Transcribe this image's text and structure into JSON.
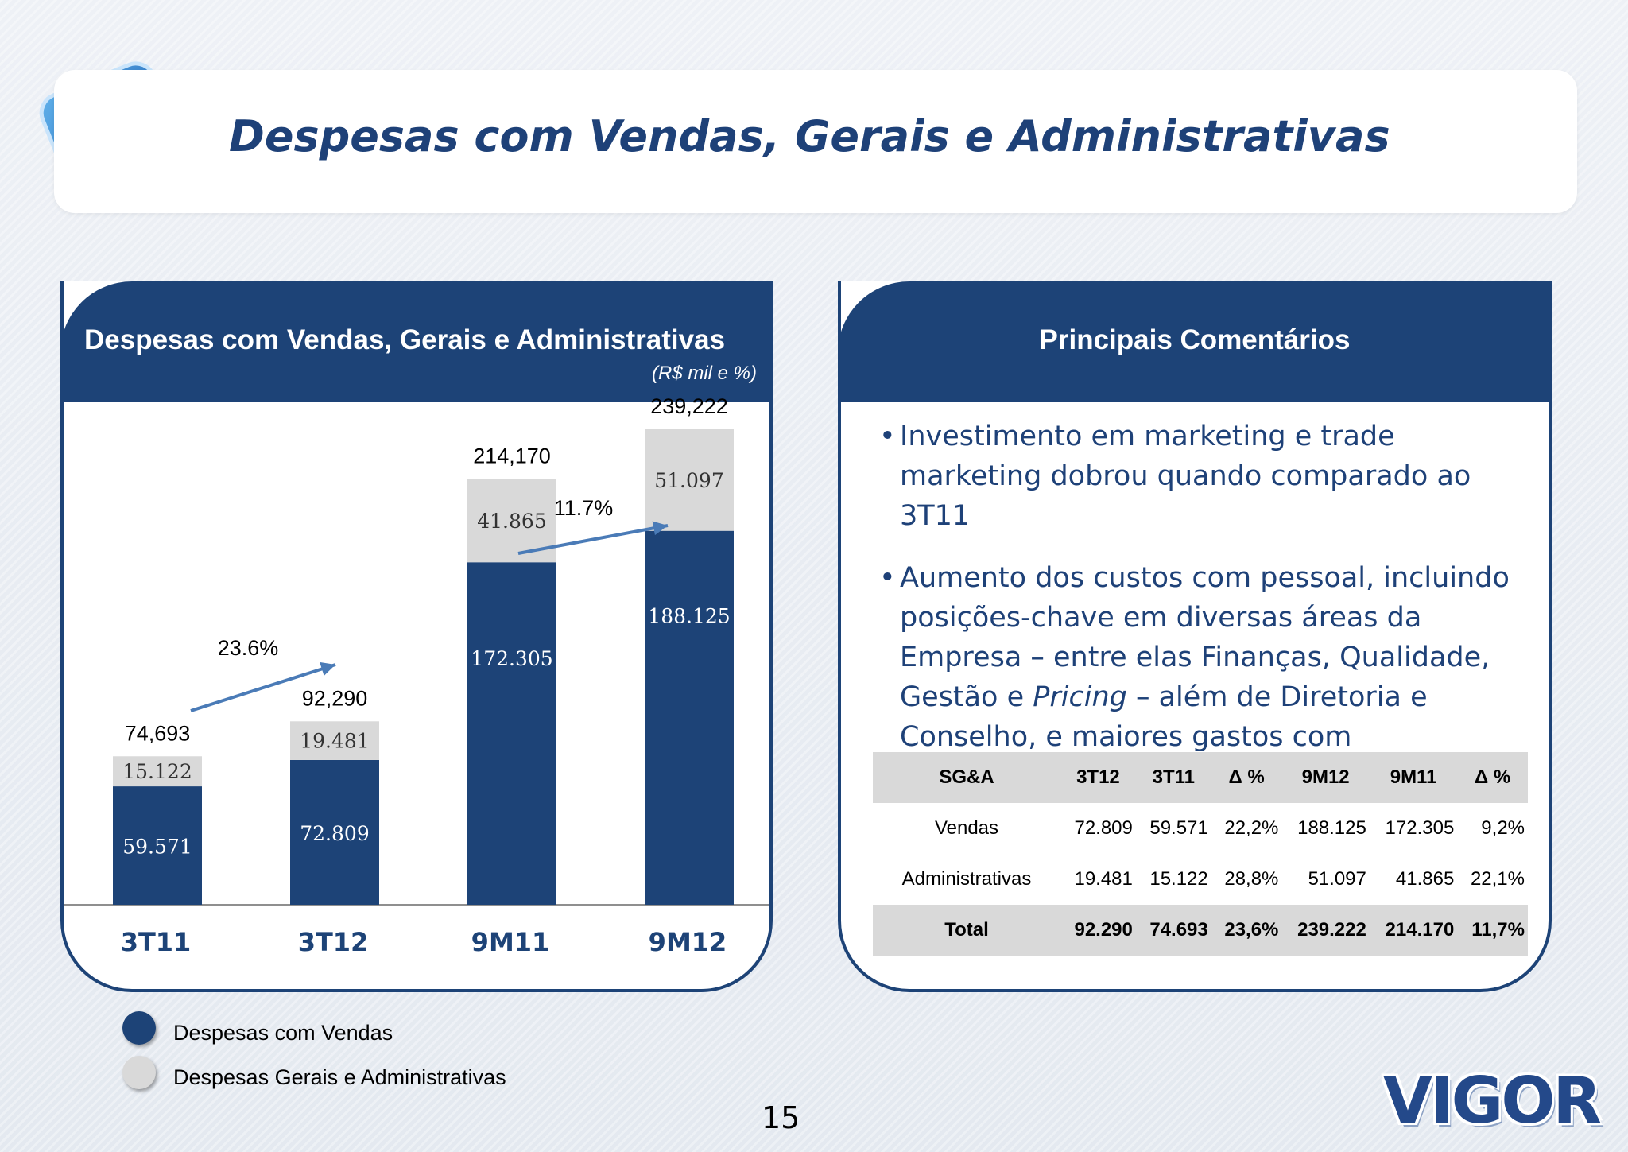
{
  "page": {
    "title": "Despesas com Vendas, Gerais e Administrativas",
    "page_number": "15",
    "brand": "VIGOR"
  },
  "colors": {
    "navy": "#1d4377",
    "bar_vendas": "#1d4377",
    "bar_ga": "#d9d9d9",
    "arrow": "#4a7bb7",
    "title_text": "#1e4178"
  },
  "left_panel": {
    "title": "Despesas com Vendas, Gerais e Administrativas",
    "units": "(R$ mil e %)"
  },
  "chart_data": {
    "type": "bar",
    "stacked": true,
    "categories": [
      "3T11",
      "3T12",
      "9M11",
      "9M12"
    ],
    "series": [
      {
        "name": "Despesas com Vendas",
        "values": [
          59571,
          72809,
          172305,
          188125
        ],
        "labels": [
          "59.571",
          "72.809",
          "172.305",
          "188.125"
        ]
      },
      {
        "name": "Despesas Gerais e Administrativas",
        "values": [
          15122,
          19481,
          41865,
          51097
        ],
        "labels": [
          "15.122",
          "19.481",
          "41.865",
          "51.097"
        ]
      }
    ],
    "totals": [
      74693,
      92290,
      214170,
      239222
    ],
    "total_labels": [
      "74,693",
      "92,290",
      "214,170",
      "239,222"
    ],
    "growth_annotations": [
      {
        "text": "23.6%",
        "from": "3T11",
        "to": "3T12"
      },
      {
        "text": "11.7%",
        "from": "9M11",
        "to": "9M12"
      }
    ],
    "legend": [
      "Despesas com Vendas",
      "Despesas Gerais e Administrativas"
    ],
    "legend_position": "bottom-left",
    "grid": false,
    "xlabel": "",
    "ylabel": "",
    "ylim": [
      0,
      250000
    ]
  },
  "right_panel": {
    "title": "Principais Comentários",
    "bullet1": "Investimento em marketing e trade marketing dobrou quando comparado ao 3T11",
    "bullet2_a": "Aumento dos custos com pessoal, incluindo posições-chave em diversas áreas da Empresa – entre elas Finanças, Qualidade, Gestão e ",
    "bullet2_italic": "Pricing",
    "bullet2_b": " – além de Diretoria e Conselho, e maiores gastos com armazenagem"
  },
  "table": {
    "headers": [
      "SG&A",
      "3T12",
      "3T11",
      "Δ %",
      "9M12",
      "9M11",
      "Δ %"
    ],
    "rows": [
      [
        "Vendas",
        "72.809",
        "59.571",
        "22,2%",
        "188.125",
        "172.305",
        "9,2%"
      ],
      [
        "Administrativas",
        "19.481",
        "15.122",
        "28,8%",
        "51.097",
        "41.865",
        "22,1%"
      ],
      [
        "Total",
        "92.290",
        "74.693",
        "23,6%",
        "239.222",
        "214.170",
        "11,7%"
      ]
    ]
  },
  "legend": {
    "vendas": "Despesas com Vendas",
    "ga": "Despesas Gerais e Administrativas"
  }
}
